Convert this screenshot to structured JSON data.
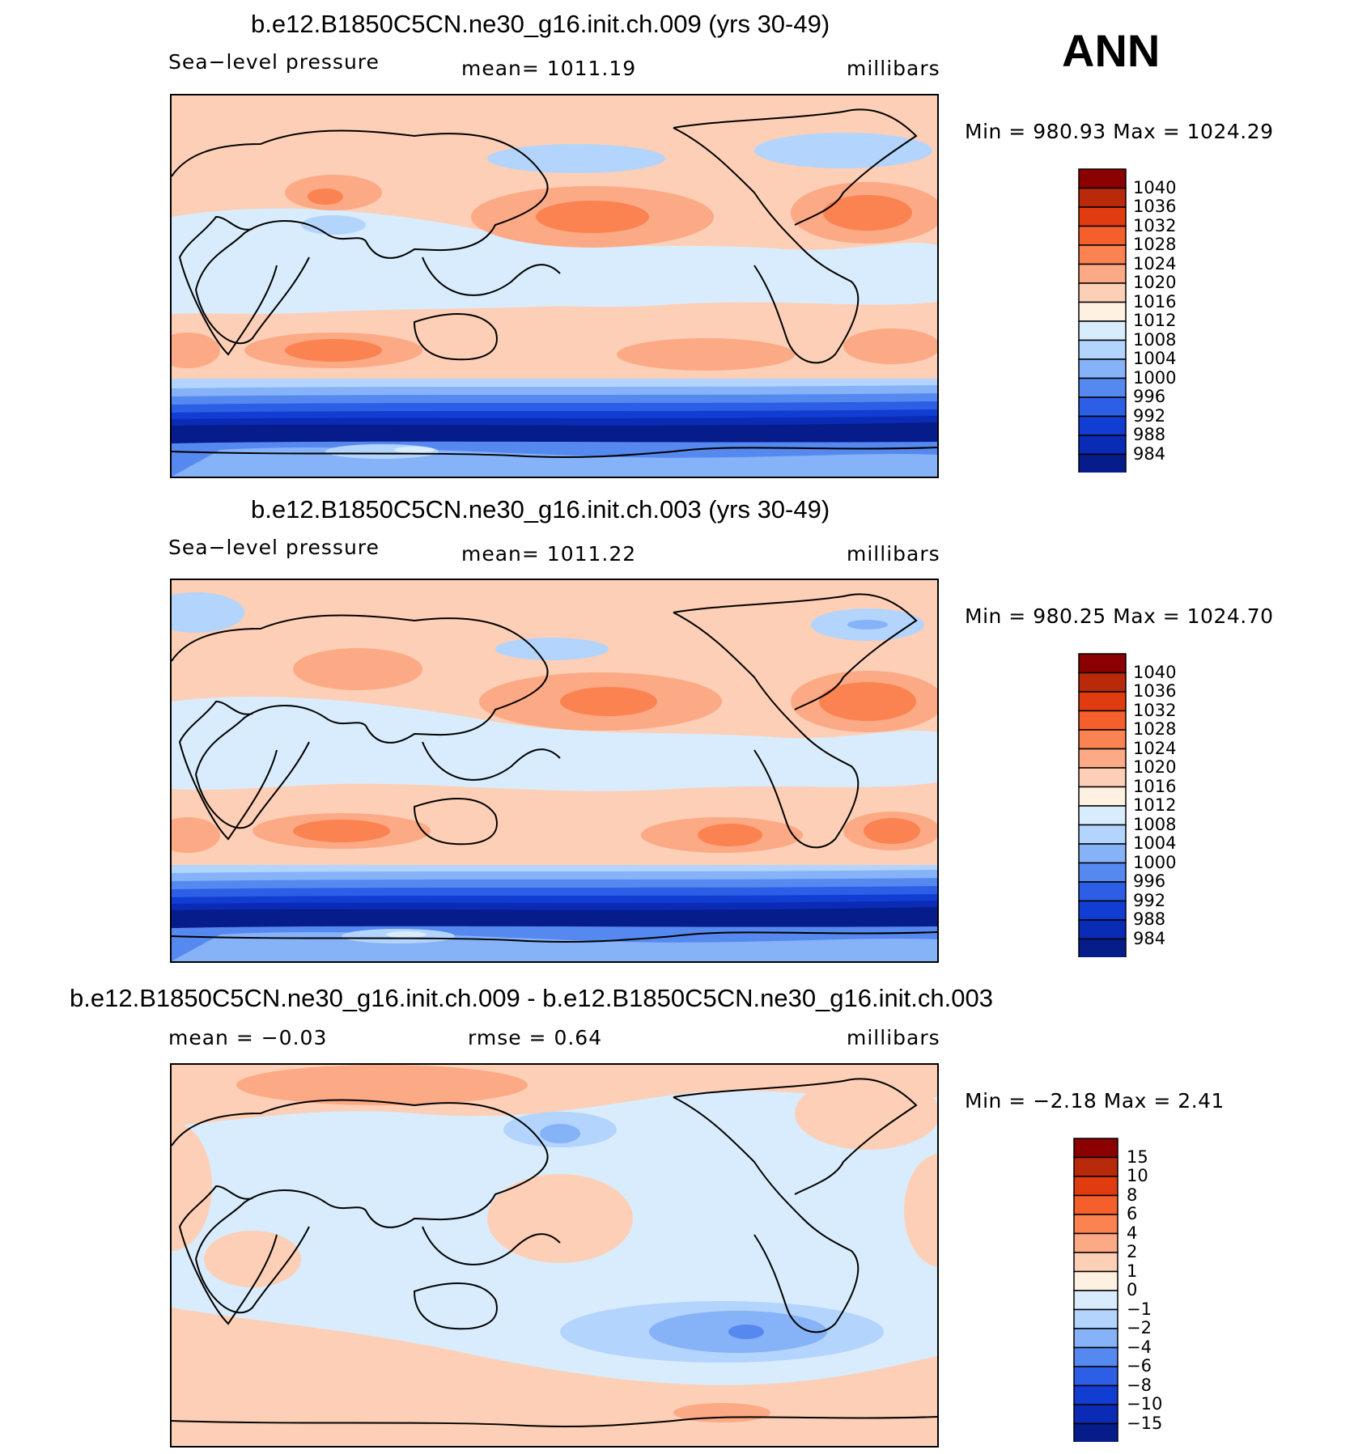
{
  "season": "ANN",
  "panels": [
    {
      "title": "b.e12.B1850C5CN.ne30_g16.init.ch.009 (yrs 30-49)",
      "left_label": "Sea−level pressure",
      "center_label": "mean=  1011.19",
      "right_label": "millibars",
      "minmax": "Min  =  980.93  Max  =  1024.29",
      "kind": "abs"
    },
    {
      "title": "b.e12.B1850C5CN.ne30_g16.init.ch.003 (yrs 30-49)",
      "left_label": "Sea−level pressure",
      "center_label": "mean=  1011.22",
      "right_label": "millibars",
      "minmax": "Min  =  980.25  Max  =  1024.70",
      "kind": "abs"
    },
    {
      "title": "b.e12.B1850C5CN.ne30_g16.init.ch.009 - b.e12.B1850C5CN.ne30_g16.init.ch.003",
      "left_label": "mean  =    −0.03",
      "center_label": "rmse  =     0.64",
      "right_label": "millibars",
      "minmax": "Min  =    −2.18  Max  =     2.41",
      "kind": "diff"
    }
  ],
  "colorbars": {
    "abs": {
      "levels": [
        "1040",
        "1036",
        "1032",
        "1028",
        "1024",
        "1020",
        "1016",
        "1012",
        "1008",
        "1004",
        "1000",
        "996",
        "992",
        "988",
        "984"
      ],
      "colors": [
        "#8b0000",
        "#b82a09",
        "#e03c10",
        "#f45f2c",
        "#fb8251",
        "#fca985",
        "#fdcfb6",
        "#fff1e1",
        "#d9ecfd",
        "#b3d4fc",
        "#86b2f8",
        "#5689f0",
        "#2c5ee6",
        "#113dd3",
        "#0a2bb5",
        "#061c8a"
      ]
    },
    "diff": {
      "levels": [
        "15",
        "10",
        "8",
        "6",
        "4",
        "2",
        "1",
        "0",
        "−1",
        "−2",
        "−4",
        "−6",
        "−8",
        "−10",
        "−15"
      ],
      "colors": [
        "#8b0000",
        "#b82a09",
        "#e03c10",
        "#f45f2c",
        "#fb8251",
        "#fca985",
        "#fdcfb6",
        "#fff1e1",
        "#d9ecfd",
        "#b3d4fc",
        "#86b2f8",
        "#5689f0",
        "#2c5ee6",
        "#113dd3",
        "#0a2bb5",
        "#061c8a"
      ]
    }
  }
}
